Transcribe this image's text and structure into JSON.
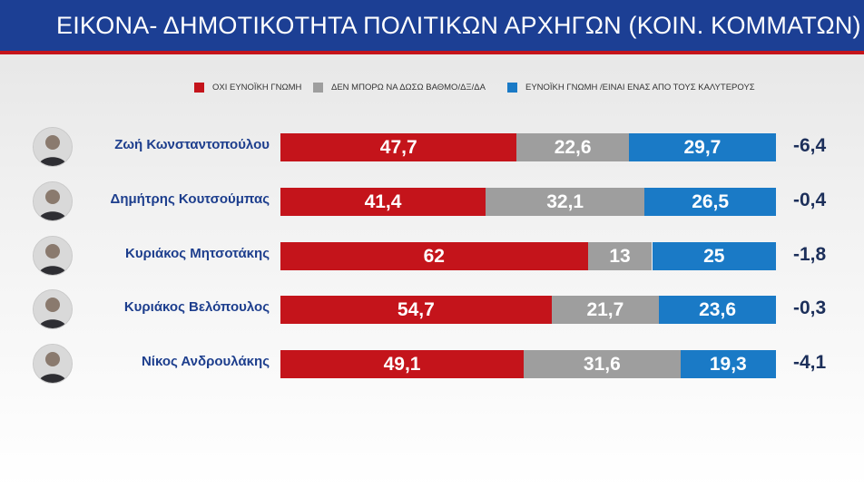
{
  "header": {
    "title": "ΕΙΚΟΝΑ- ΔΗΜΟΤΙΚΟΤΗΤΑ ΠΟΛΙΤΙΚΩΝ ΑΡΧΗΓΩΝ (ΚΟΙΝ. ΚΟΜΜΑΤΩΝ)"
  },
  "colors": {
    "negative": "#c4141b",
    "neutral": "#9e9e9e",
    "positive": "#1a7ac6",
    "header_bg": "#1c3f94",
    "name_text": "#1d3e8d"
  },
  "icons": {
    "avatar": "person-photo-icon"
  },
  "chart_data": {
    "type": "bar",
    "orientation": "horizontal",
    "stacked": true,
    "title": "ΕΙΚΟΝΑ- ΔΗΜΟΤΙΚΟΤΗΤΑ ΠΟΛΙΤΙΚΩΝ ΑΡΧΗΓΩΝ (ΚΟΙΝ. ΚΟΜΜΑΤΩΝ)",
    "legend_position": "top",
    "categories": [
      "Ζωή Κωνσταντοπούλου",
      "Δημήτρης Κουτσούμπας",
      "Κυριάκος Μητσοτάκης",
      "Κυριάκος Βελόπουλος",
      "Νίκος Ανδρουλάκης"
    ],
    "series": [
      {
        "name": "ΟΧΙ ΕΥΝΟΪΚΗ ΓΝΩΜΗ",
        "color": "#c4141b",
        "values": [
          47.7,
          41.4,
          62,
          54.7,
          49.1
        ],
        "labels": [
          "47,7",
          "41,4",
          "62",
          "54,7",
          "49,1"
        ]
      },
      {
        "name": "ΔΕΝ ΜΠΟΡΩ ΝΑ ΔΩΣΩ ΒΑΘΜΟ/ΔΞ/ΔΑ",
        "color": "#9e9e9e",
        "values": [
          22.6,
          32.1,
          13,
          21.7,
          31.6
        ],
        "labels": [
          "22,6",
          "32,1",
          "13",
          "21,7",
          "31,6"
        ]
      },
      {
        "name": "ΕΥΝΟΪΚΗ ΓΝΩΜΗ /ΕΙΝΑΙ ΕΝΑΣ ΑΠΟ ΤΟΥΣ ΚΑΛΥΤΕΡΟΥΣ",
        "color": "#1a7ac6",
        "values": [
          29.7,
          26.5,
          25,
          23.6,
          19.3
        ],
        "labels": [
          "29,7",
          "26,5",
          "25",
          "23,6",
          "19,3"
        ]
      }
    ],
    "differences": [
      -6.4,
      -0.4,
      -1.8,
      -0.3,
      -4.1
    ],
    "difference_labels": [
      "-6,4",
      "-0,4",
      "-1,8",
      "-0,3",
      "-4,1"
    ]
  }
}
